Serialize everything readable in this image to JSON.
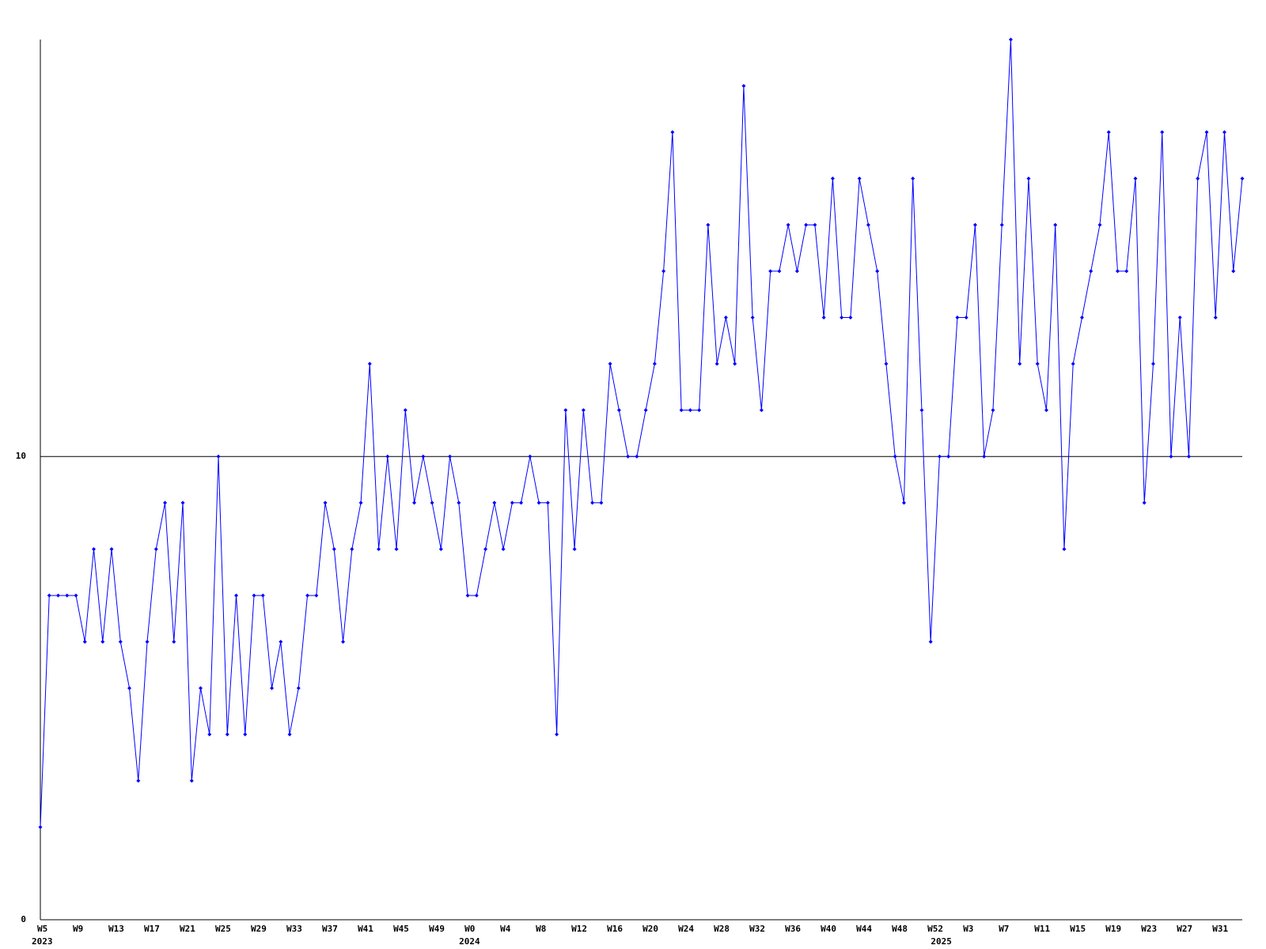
{
  "chart_data": {
    "type": "line",
    "categories": [
      "W5",
      null,
      null,
      null,
      "W9",
      null,
      null,
      null,
      "W13",
      null,
      null,
      null,
      "W17",
      null,
      null,
      null,
      "W21",
      null,
      null,
      null,
      "W25",
      null,
      null,
      null,
      "W29",
      null,
      null,
      null,
      "W33",
      null,
      null,
      null,
      "W37",
      null,
      null,
      null,
      "W41",
      null,
      null,
      null,
      "W45",
      null,
      null,
      null,
      "W49",
      null,
      null,
      null,
      "W0",
      null,
      null,
      null,
      "W4",
      null,
      null,
      null,
      "W8",
      null,
      null,
      null,
      "W12",
      null,
      null,
      null,
      "W16",
      null,
      null,
      null,
      "W20",
      null,
      null,
      null,
      "W24",
      null,
      null,
      null,
      "W28",
      null,
      null,
      null,
      "W32",
      null,
      null,
      null,
      "W36",
      null,
      null,
      null,
      "W40",
      null,
      null,
      null,
      "W44",
      null,
      null,
      null,
      "W48",
      null,
      null,
      null,
      "W52",
      null,
      null,
      null,
      "W3",
      null,
      null,
      null,
      "W7",
      null,
      null,
      null,
      "W11",
      null,
      null,
      null,
      "W15",
      null,
      null,
      null,
      "W19",
      null,
      null,
      null,
      "W23",
      null,
      null,
      null,
      "W27",
      null,
      null,
      null,
      "W31",
      null,
      null,
      null
    ],
    "category_years": [
      "2023",
      null,
      null,
      null,
      null,
      null,
      null,
      null,
      null,
      null,
      null,
      null,
      null,
      null,
      null,
      null,
      null,
      null,
      null,
      null,
      null,
      null,
      null,
      null,
      null,
      null,
      null,
      null,
      null,
      null,
      null,
      null,
      null,
      null,
      null,
      null,
      null,
      null,
      null,
      null,
      null,
      null,
      null,
      null,
      null,
      null,
      null,
      null,
      "2024",
      null,
      null,
      null,
      null,
      null,
      null,
      null,
      null,
      null,
      null,
      null,
      null,
      null,
      null,
      null,
      null,
      null,
      null,
      null,
      null,
      null,
      null,
      null,
      null,
      null,
      null,
      null,
      null,
      null,
      null,
      null,
      null,
      null,
      null,
      null,
      null,
      null,
      null,
      null,
      null,
      null,
      null,
      null,
      null,
      null,
      null,
      null,
      null,
      null,
      null,
      null,
      null,
      "2025",
      null,
      null,
      null,
      null,
      null,
      null,
      null,
      null,
      null,
      null,
      null,
      null,
      null,
      null,
      null,
      null,
      null,
      null,
      null,
      null,
      null,
      null,
      null,
      null,
      null,
      null,
      null,
      null,
      null,
      null,
      null,
      null,
      null,
      null
    ],
    "series": [
      {
        "color": "#0000ff",
        "values": [
          2,
          7,
          7,
          7,
          7,
          6,
          8,
          6,
          8,
          6,
          5,
          3,
          6,
          8,
          9,
          6,
          9,
          3,
          5,
          4,
          10,
          4,
          7,
          4,
          7,
          7,
          5,
          6,
          4,
          5,
          7,
          7,
          9,
          8,
          6,
          8,
          9,
          12,
          8,
          10,
          8,
          11,
          9,
          10,
          9,
          8,
          10,
          9,
          7,
          7,
          8,
          9,
          8,
          9,
          9,
          10,
          9,
          9,
          4,
          11,
          8,
          11,
          9,
          9,
          12,
          11,
          10,
          10,
          11,
          12,
          14,
          17,
          11,
          11,
          11,
          15,
          12,
          13,
          12,
          18,
          13,
          11,
          14,
          14,
          15,
          14,
          15,
          15,
          13,
          16,
          13,
          13,
          16,
          15,
          14,
          12,
          10,
          9,
          16,
          11,
          6,
          10,
          10,
          13,
          13,
          15,
          10,
          11,
          15,
          19,
          12,
          16,
          12,
          11,
          15,
          8,
          12,
          13,
          14,
          15,
          17,
          14,
          14,
          16,
          9,
          12,
          17,
          10,
          13,
          10,
          16,
          17,
          13,
          17,
          14,
          16
        ]
      }
    ],
    "ylim": [
      0,
      19
    ],
    "yticks": [
      0,
      10
    ],
    "grid": true
  }
}
